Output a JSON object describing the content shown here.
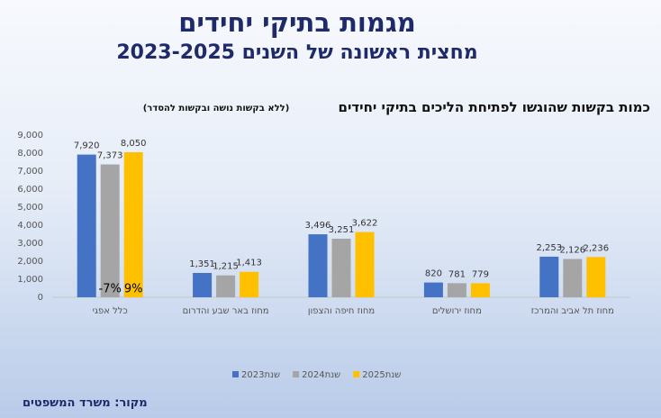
{
  "chart_data": {
    "type": "bar",
    "title": "מגמות בתיקי יחידים",
    "subtitle": "מחצית ראשונה של השנים 2023-2025",
    "chart_title": "כמות בקשות שהוגשו לפתיחת הליכים בתיקי יחידים",
    "note": "(ללא בקשות נושה ובקשות להסדר)",
    "source": "מקור: משרד המשפטים",
    "categories": [
      "כלל אפגי",
      "מחוז באר שבע והדרום",
      "מחוז חיפה והצפון",
      "מחוז ירושלים",
      "מחוז תל אביב והמרכז"
    ],
    "series": [
      {
        "name": "שנת2023",
        "color": "#4472c4",
        "values": [
          7920,
          1351,
          3496,
          820,
          2253
        ],
        "value_labels": [
          "7,920",
          "1,351",
          "3,496",
          "820",
          "2,253"
        ]
      },
      {
        "name": "שנת2024",
        "color": "#a5a5a5",
        "values": [
          7373,
          1215,
          3251,
          781,
          2126
        ],
        "value_labels": [
          "7,373",
          "1,215",
          "3,251",
          "781",
          "2,126"
        ]
      },
      {
        "name": "שנת2025",
        "color": "#ffc000",
        "values": [
          8050,
          1413,
          3622,
          779,
          2236
        ],
        "value_labels": [
          "8,050",
          "1,413",
          "3,622",
          "779",
          "2,236"
        ]
      }
    ],
    "annotations": [
      {
        "text": "-7%"
      },
      {
        "text": "9%"
      }
    ],
    "ylim": [
      0,
      9000
    ],
    "yticks": [
      0,
      {
        "value": 1000,
        "label": "1,000"
      },
      {
        "value": 2000,
        "label": "2,000"
      },
      {
        "value": 3000,
        "label": "3,000"
      },
      {
        "value": 4000,
        "label": "4,000"
      },
      {
        "value": 5000,
        "label": "5,000"
      },
      {
        "value": 6000,
        "label": "6,000"
      },
      {
        "value": 7000,
        "label": "7,000"
      },
      {
        "value": 8000,
        "label": "8,000"
      },
      {
        "value": 9000,
        "label": "9,000"
      }
    ],
    "grid": false
  }
}
